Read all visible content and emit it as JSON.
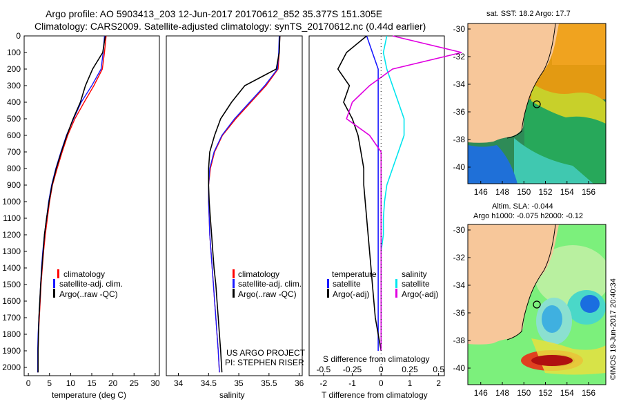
{
  "header": {
    "line1": "Argo profile: AO 5903413_203 12-Jun-2017 20170612_852 35.377S 151.305E",
    "line2": "Climatology: CARS2009. Satellite-adjusted climatology: synTS_20170612.nc (0.44d earlier)"
  },
  "colors": {
    "climatology": "#ff0000",
    "satellite": "#1a1aff",
    "argo": "#000000",
    "satellite_s": "#00e5ee",
    "argo_s": "#e000e0"
  },
  "depth_ticks": [
    "0",
    "100",
    "200",
    "300",
    "400",
    "500",
    "600",
    "700",
    "800",
    "900",
    "1000",
    "1100",
    "1200",
    "1300",
    "1400",
    "1500",
    "1600",
    "1700",
    "1800",
    "1900",
    "2000"
  ],
  "chart_data": [
    {
      "type": "line",
      "xlabel": "temperature (deg C)",
      "xticks": [
        "0",
        "5",
        "10",
        "15",
        "20",
        "25",
        "30"
      ],
      "xlim": [
        -1,
        31
      ],
      "ylim": [
        2050,
        0
      ],
      "legend": [
        "climatology",
        "satellite-adj. clim.",
        "Argo(..raw -QC)"
      ],
      "series": [
        {
          "name": "climatology",
          "x": [
            18.4,
            18.0,
            17.5,
            15.5,
            13.2,
            11.0,
            9.3,
            8.0,
            6.8,
            5.7,
            5.0,
            4.5,
            4.0,
            3.6,
            3.3,
            3.0,
            2.8,
            2.6,
            2.4,
            2.3,
            2.2
          ],
          "y": [
            0,
            100,
            200,
            300,
            400,
            500,
            600,
            700,
            800,
            900,
            1000,
            1100,
            1200,
            1300,
            1400,
            1500,
            1600,
            1700,
            1800,
            1900,
            2030
          ]
        },
        {
          "name": "satellite-adj. clim.",
          "x": [
            18.0,
            17.7,
            17.2,
            15.0,
            12.5,
            10.7,
            9.0,
            7.7,
            6.5,
            5.5,
            4.8,
            4.3,
            3.8,
            3.4,
            3.1,
            2.9,
            2.7,
            2.5,
            2.3,
            2.2,
            2.2
          ],
          "y": [
            0,
            100,
            200,
            300,
            400,
            500,
            600,
            700,
            800,
            900,
            1000,
            1100,
            1200,
            1300,
            1400,
            1500,
            1600,
            1700,
            1800,
            1900,
            2030
          ]
        },
        {
          "name": "Argo(..raw -QC)",
          "x": [
            18.2,
            17.6,
            15.2,
            13.5,
            12.3,
            10.6,
            9.1,
            7.8,
            6.6,
            5.6,
            4.9,
            4.3,
            3.8,
            3.5,
            3.2,
            2.9,
            2.7,
            2.5,
            2.4,
            2.3,
            2.3
          ],
          "y": [
            0,
            100,
            200,
            300,
            400,
            500,
            600,
            700,
            800,
            900,
            1000,
            1100,
            1200,
            1300,
            1400,
            1500,
            1600,
            1700,
            1800,
            1900,
            2030
          ]
        }
      ]
    },
    {
      "type": "line",
      "xlabel": "salinity",
      "xticks": [
        "34",
        "34.5",
        "35",
        "35.5",
        "36"
      ],
      "xlim": [
        33.8,
        36.05
      ],
      "ylim": [
        2050,
        0
      ],
      "legend": [
        "climatology",
        "satellite-adj. clim.",
        "Argo(..raw -QC)"
      ],
      "annotation": [
        "US ARGO PROJECT",
        "PI: STEPHEN RISER"
      ],
      "series": [
        {
          "name": "climatology",
          "x": [
            35.68,
            35.67,
            35.65,
            35.45,
            35.2,
            34.95,
            34.73,
            34.6,
            34.53,
            34.5,
            34.5,
            34.51,
            34.52,
            34.54,
            34.56,
            34.58,
            34.6,
            34.62,
            34.64,
            34.66,
            34.68
          ],
          "y": [
            0,
            100,
            200,
            300,
            400,
            500,
            600,
            700,
            800,
            900,
            1000,
            1100,
            1200,
            1300,
            1400,
            1500,
            1600,
            1700,
            1800,
            1900,
            2030
          ]
        },
        {
          "name": "satellite-adj. clim.",
          "x": [
            35.67,
            35.66,
            35.64,
            35.43,
            35.18,
            34.93,
            34.72,
            34.59,
            34.52,
            34.5,
            34.5,
            34.51,
            34.52,
            34.54,
            34.56,
            34.58,
            34.6,
            34.62,
            34.64,
            34.66,
            34.68
          ],
          "y": [
            0,
            100,
            200,
            300,
            400,
            500,
            600,
            700,
            800,
            900,
            1000,
            1100,
            1200,
            1300,
            1400,
            1500,
            1600,
            1700,
            1800,
            1900,
            2030
          ]
        },
        {
          "name": "Argo(..raw -QC)",
          "x": [
            35.68,
            35.67,
            35.62,
            35.1,
            34.88,
            34.7,
            34.6,
            34.52,
            34.5,
            34.5,
            34.51,
            34.53,
            34.55,
            34.57,
            34.59,
            34.62,
            34.64,
            34.66,
            34.68,
            34.7,
            34.72
          ],
          "y": [
            0,
            100,
            200,
            300,
            400,
            500,
            600,
            700,
            800,
            900,
            1000,
            1100,
            1200,
            1300,
            1400,
            1500,
            1600,
            1700,
            1800,
            1900,
            2030
          ]
        }
      ]
    },
    {
      "type": "line",
      "xlabel": "T difference from climatology",
      "toplabel": "S difference from climatology",
      "xticks": [
        "-2",
        "-1",
        "0",
        "1",
        "2"
      ],
      "sticks": [
        "-0.5",
        "-0.25",
        "0",
        "0.25",
        "0.5"
      ],
      "xlim": [
        -2.5,
        2.2
      ],
      "ylim": [
        2050,
        0
      ],
      "legend_titles": [
        "temperature",
        "salinity"
      ],
      "legend_t": [
        "satellite",
        "Argo(-adj)"
      ],
      "legend_s": [
        "satellite",
        "Argo(-adj)"
      ],
      "series": [
        {
          "name": "satellite",
          "x": [
            -0.5,
            -0.3,
            -0.1,
            -0.1,
            -0.1,
            -0.1,
            -0.1,
            -0.1,
            -0.1,
            -0.1,
            -0.1,
            -0.1,
            -0.1,
            -0.1,
            -0.1,
            -0.1,
            -0.1,
            -0.1,
            -0.1,
            -0.1
          ],
          "y": [
            0,
            100,
            200,
            300,
            400,
            500,
            600,
            700,
            800,
            900,
            1000,
            1100,
            1200,
            1300,
            1400,
            1500,
            1600,
            1700,
            1800,
            1900
          ]
        },
        {
          "name": "Argo(-adj)",
          "x": [
            -0.5,
            -1.2,
            -1.5,
            -1.1,
            -1.3,
            -1.0,
            -0.8,
            -0.7,
            -0.6,
            -0.6,
            -0.55,
            -0.5,
            -0.45,
            -0.4,
            -0.35,
            -0.3,
            -0.25,
            -0.2,
            -0.1,
            0.0
          ],
          "y": [
            0,
            100,
            200,
            300,
            400,
            500,
            600,
            700,
            800,
            900,
            1000,
            1100,
            1200,
            1300,
            1400,
            1500,
            1600,
            1700,
            1800,
            1900
          ]
        },
        {
          "name": "satellite (S)",
          "x": [
            0.05,
            0.02,
            0.05,
            0.1,
            0.15,
            0.2,
            0.2,
            0.15,
            0.1,
            0.05,
            0.03,
            0.02,
            0.02,
            0.0,
            0.0,
            0.0,
            0.0,
            0.0,
            0.0,
            0.0
          ],
          "y": [
            0,
            100,
            200,
            300,
            400,
            500,
            600,
            700,
            800,
            900,
            1000,
            1100,
            1200,
            1300,
            1400,
            1500,
            1600,
            1700,
            1800,
            1900
          ]
        },
        {
          "name": "Argo(-adj) (S)",
          "x": [
            0.1,
            0.7,
            0.1,
            -0.1,
            -0.25,
            -0.3,
            -0.1,
            0.0,
            0.0,
            0.0,
            0.0,
            0.0,
            0.0,
            0.0,
            0.0,
            0.0,
            0.0,
            0.0,
            0.0,
            0.0
          ],
          "y": [
            0,
            100,
            200,
            300,
            400,
            500,
            600,
            700,
            800,
            900,
            1000,
            1100,
            1200,
            1300,
            1400,
            1500,
            1600,
            1700,
            1800,
            1900
          ]
        }
      ]
    },
    {
      "type": "heatmap",
      "title": "sat. SST: 18.2  Argo: 17.7",
      "xticks": [
        "146",
        "148",
        "150",
        "152",
        "154",
        "156"
      ],
      "yticks": [
        "-30",
        "-32",
        "-34",
        "-36",
        "-38",
        "-40"
      ],
      "xlim": [
        144.8,
        157.6
      ],
      "ylim": [
        -41.2,
        -29.6
      ],
      "marker": {
        "lon": 151.3,
        "lat": -35.4
      }
    },
    {
      "type": "heatmap",
      "title1": "Altim. SLA: -0.044",
      "title2": "Argo h1000: -0.075  h2000: -0.12",
      "xticks": [
        "146",
        "148",
        "150",
        "152",
        "154",
        "156"
      ],
      "yticks": [
        "-30",
        "-32",
        "-34",
        "-36",
        "-38",
        "-40"
      ],
      "xlim": [
        144.8,
        157.6
      ],
      "ylim": [
        -41.2,
        -29.6
      ],
      "marker": {
        "lon": 151.3,
        "lat": -35.4
      }
    }
  ],
  "side_stamp": "©IMOS 19-Jun-2017 20:40:34"
}
